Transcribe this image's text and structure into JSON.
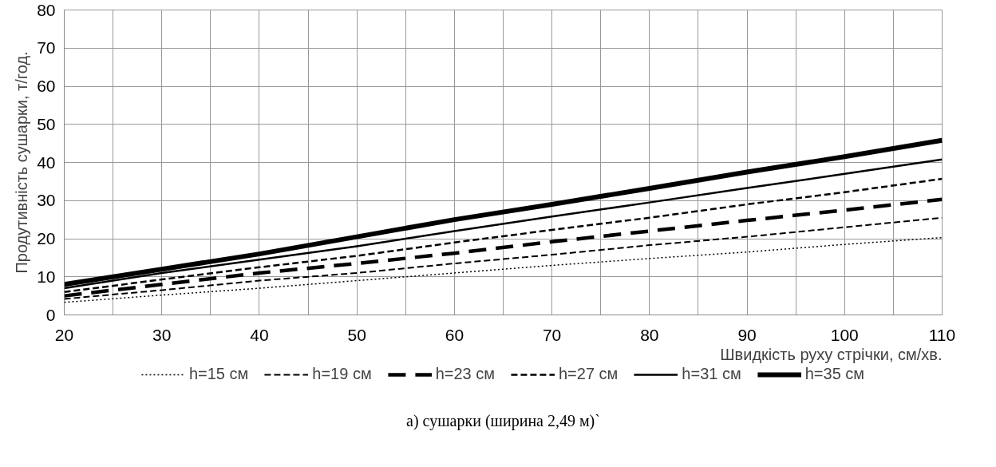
{
  "chart_data": {
    "type": "line",
    "xlabel": "Швидкість руху стрічки, см/хв.",
    "ylabel": "Продутивність сушарки, т/год.",
    "x": [
      20,
      30,
      40,
      50,
      60,
      70,
      80,
      90,
      100,
      110
    ],
    "series": [
      {
        "name": "h=15 см",
        "color": "#000000",
        "line_style": "dotted",
        "values": [
          3.3,
          5.2,
          7,
          9,
          11,
          13,
          14.8,
          16.5,
          18.5,
          20.3
        ]
      },
      {
        "name": "h=19 см",
        "color": "#000000",
        "line_style": "dashed",
        "values": [
          4.2,
          6.5,
          9,
          11,
          13.5,
          15.8,
          18.3,
          20.5,
          23,
          25.5
        ]
      },
      {
        "name": "h=23 см",
        "color": "#000000",
        "line_style": "dashed",
        "values": [
          5,
          8,
          11,
          13.5,
          16.2,
          19.2,
          22,
          24.8,
          27.5,
          30.3
        ]
      },
      {
        "name": "h=27 см",
        "color": "#000000",
        "line_style": "dashed",
        "values": [
          6,
          9.3,
          12.5,
          15.5,
          19,
          22.3,
          25.5,
          29,
          32.2,
          35.7
        ]
      },
      {
        "name": "h=31 см",
        "color": "#000000",
        "line_style": "solid",
        "values": [
          7,
          11,
          14.5,
          18,
          22,
          25.8,
          29.5,
          33.3,
          37,
          40.8
        ]
      },
      {
        "name": "h=35 см",
        "color": "#000000",
        "line_style": "solid",
        "values": [
          8,
          12,
          16,
          20.5,
          25,
          29,
          33.2,
          37.5,
          41.5,
          45.8
        ]
      }
    ],
    "xlim": [
      20,
      110
    ],
    "xticks": [
      20,
      {
        "value": 25,
        "label": null
      },
      30,
      {
        "value": 35,
        "label": null
      },
      40,
      {
        "value": 45,
        "label": null
      },
      50,
      {
        "value": 55,
        "label": null
      },
      60,
      {
        "value": 65,
        "label": null
      },
      70,
      {
        "value": 75,
        "label": null
      },
      80,
      {
        "value": 85,
        "label": null
      },
      90,
      {
        "value": 95,
        "label": null
      },
      100,
      {
        "value": 105,
        "label": null
      },
      110
    ],
    "ylim": [
      0,
      80
    ],
    "yticks": [
      0,
      10,
      20,
      30,
      40,
      50,
      60,
      70,
      80
    ],
    "grid": true,
    "legend": "bottom",
    "marker": "none",
    "annotations": [
      "а) сушарки (ширина 2,49 м)`"
    ]
  }
}
